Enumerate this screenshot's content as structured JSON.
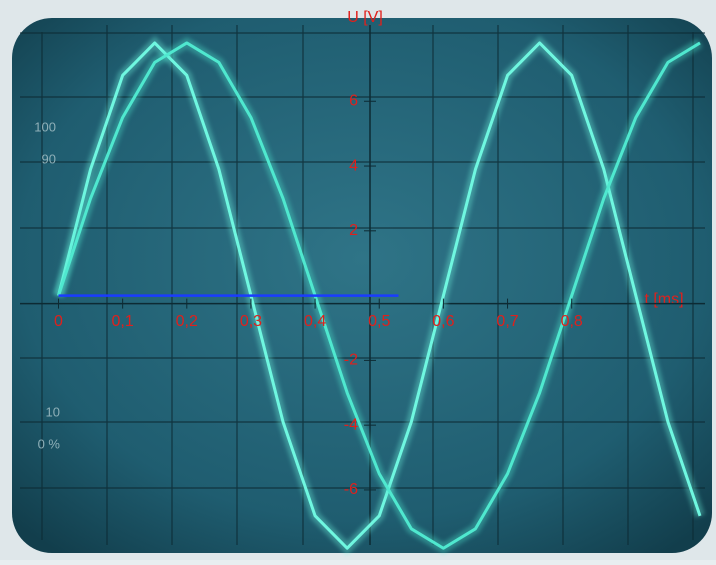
{
  "chart_data": {
    "type": "line",
    "x_label": "t [ms]",
    "y_label": "U [V]",
    "x": [
      0,
      0.05,
      0.1,
      0.15,
      0.2,
      0.25,
      0.3,
      0.35,
      0.4,
      0.45,
      0.5,
      0.55,
      0.6,
      0.65,
      0.7,
      0.75,
      0.8,
      0.85,
      0.9,
      0.95,
      1.0
    ],
    "series": [
      {
        "color": "#6ff7e0",
        "values": [
          0,
          3.9,
          6.8,
          7.8,
          6.8,
          3.9,
          0,
          -3.9,
          -6.8,
          -7.8,
          -6.8,
          -3.9,
          0,
          3.9,
          6.8,
          7.8,
          6.8,
          3.9,
          0,
          -3.9,
          -6.8
        ]
      },
      {
        "color": "#4fe8cf",
        "values": [
          0,
          3.0,
          5.5,
          7.2,
          7.8,
          7.2,
          5.5,
          3.0,
          0,
          -3.0,
          -5.5,
          -7.2,
          -7.8,
          -7.2,
          -5.5,
          -3.0,
          0,
          3.0,
          5.5,
          7.2,
          7.8
        ]
      }
    ],
    "xlim": [
      -0.06,
      1.0
    ],
    "ylim": [
      -7.7,
      8.2
    ],
    "xticks": [
      0,
      {
        "value": 0.1,
        "label": "0,1"
      },
      {
        "value": 0.2,
        "label": "0,2"
      },
      {
        "value": 0.3,
        "label": "0,3"
      },
      {
        "value": 0.4,
        "label": "0,4"
      },
      {
        "value": 0.5,
        "label": "0,5"
      },
      {
        "value": 0.6,
        "label": "0,6"
      },
      {
        "value": 0.7,
        "label": "0,7"
      },
      {
        "value": 0.8,
        "label": "0,8"
      }
    ],
    "yticks": [
      6,
      4,
      2,
      -2,
      -4,
      -6
    ],
    "label_color": "#e0201c",
    "marker_line": {
      "x": [
        0,
        0.53
      ],
      "y": 0,
      "color": "#1a3cff"
    },
    "scope_labels": [
      "100",
      "90",
      "10",
      "0 %"
    ]
  }
}
